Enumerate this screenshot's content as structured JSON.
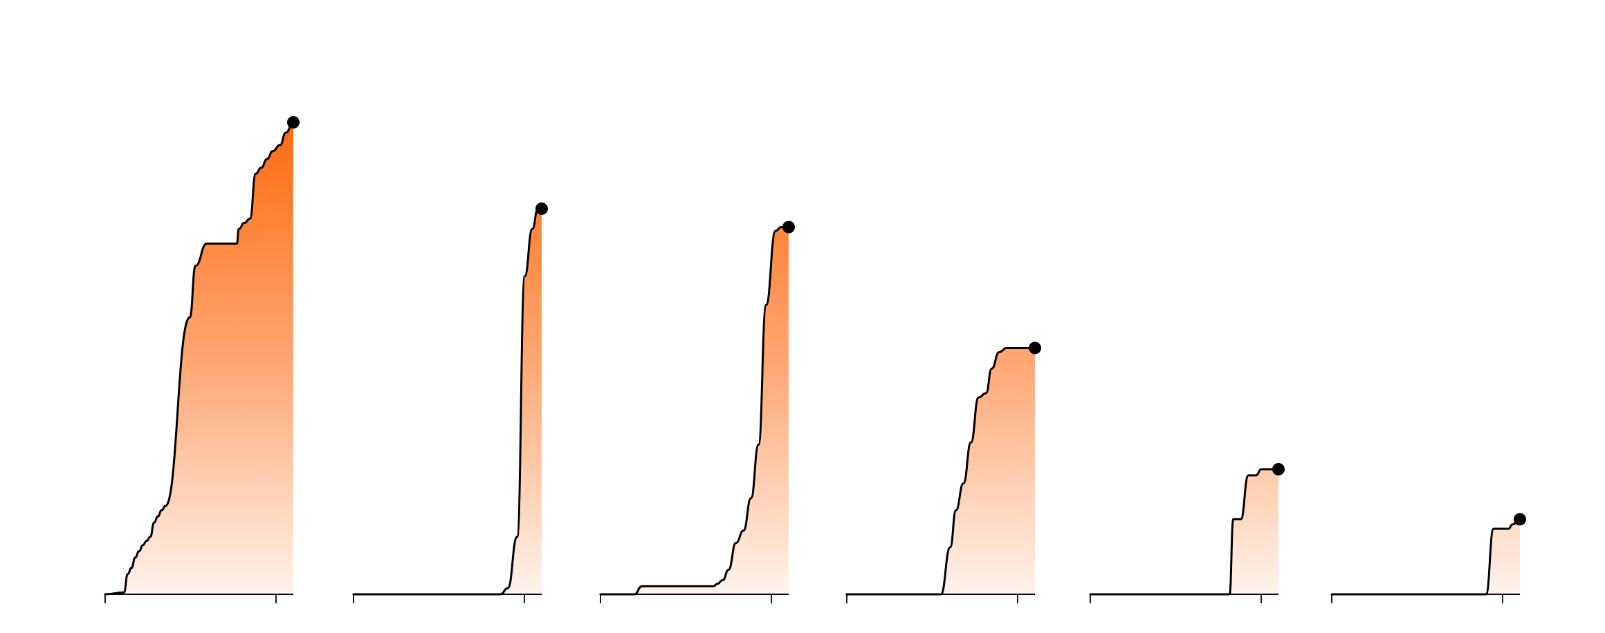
{
  "chart_data": {
    "type": "area",
    "title": "",
    "grid": false,
    "legend": "none",
    "fill_color": "#ff6a10",
    "line_color": "#000000",
    "ylim": [
      0,
      100
    ],
    "series": [
      {
        "peak": 100,
        "points": [
          [
            0,
            0
          ],
          [
            0.1,
            0.4
          ],
          [
            0.12,
            4.3
          ],
          [
            0.14,
            5.6
          ],
          [
            0.16,
            7.8
          ],
          [
            0.18,
            9.1
          ],
          [
            0.2,
            10.4
          ],
          [
            0.22,
            11.3
          ],
          [
            0.24,
            12.2
          ],
          [
            0.26,
            15.2
          ],
          [
            0.28,
            16.5
          ],
          [
            0.3,
            17.8
          ],
          [
            0.32,
            18.7
          ],
          [
            0.45,
            58.7
          ],
          [
            0.48,
            69.6
          ],
          [
            0.54,
            74.3
          ],
          [
            0.55,
            74.3
          ],
          [
            0.7,
            74.3
          ],
          [
            0.71,
            77.4
          ],
          [
            0.74,
            78.7
          ],
          [
            0.77,
            79.6
          ],
          [
            0.8,
            89.1
          ],
          [
            0.83,
            90.4
          ],
          [
            0.86,
            92.2
          ],
          [
            0.89,
            93.9
          ],
          [
            0.93,
            95.2
          ],
          [
            0.96,
            97.8
          ],
          [
            1.0,
            100
          ]
        ]
      },
      {
        "peak": 81.7,
        "points": [
          [
            0,
            0
          ],
          [
            0.78,
            0
          ],
          [
            0.82,
            1.3
          ],
          [
            0.87,
            12.2
          ],
          [
            0.91,
            67.4
          ],
          [
            0.95,
            77.4
          ],
          [
            0.98,
            81.7
          ],
          [
            1.0,
            81.7
          ]
        ]
      },
      {
        "peak": 77.8,
        "points": [
          [
            0,
            0
          ],
          [
            0.18,
            0
          ],
          [
            0.22,
            1.7
          ],
          [
            0.25,
            1.7
          ],
          [
            0.6,
            1.7
          ],
          [
            0.62,
            2.2
          ],
          [
            0.65,
            3.0
          ],
          [
            0.68,
            5.2
          ],
          [
            0.72,
            10.9
          ],
          [
            0.76,
            13.5
          ],
          [
            0.8,
            20.4
          ],
          [
            0.84,
            31.7
          ],
          [
            0.88,
            61.3
          ],
          [
            0.93,
            77.0
          ],
          [
            0.96,
            77.8
          ],
          [
            1.0,
            77.8
          ]
        ]
      },
      {
        "peak": 52.2,
        "points": [
          [
            0,
            0
          ],
          [
            0.5,
            0
          ],
          [
            0.55,
            10.0
          ],
          [
            0.58,
            17.8
          ],
          [
            0.62,
            23.5
          ],
          [
            0.66,
            32.2
          ],
          [
            0.7,
            41.7
          ],
          [
            0.74,
            42.6
          ],
          [
            0.77,
            47.8
          ],
          [
            0.81,
            51.3
          ],
          [
            0.85,
            52.2
          ],
          [
            1.0,
            52.2
          ]
        ]
      },
      {
        "peak": 26.5,
        "points": [
          [
            0,
            0
          ],
          [
            0.74,
            0
          ],
          [
            0.76,
            15.9
          ],
          [
            0.8,
            15.9
          ],
          [
            0.84,
            25.2
          ],
          [
            0.88,
            25.2
          ],
          [
            0.91,
            26.5
          ],
          [
            1.0,
            26.5
          ]
        ]
      },
      {
        "peak": 15.9,
        "points": [
          [
            0,
            0
          ],
          [
            0.82,
            0
          ],
          [
            0.86,
            13.9
          ],
          [
            0.9,
            13.9
          ],
          [
            0.94,
            13.9
          ],
          [
            0.96,
            14.8
          ],
          [
            1.0,
            15.9
          ]
        ]
      }
    ]
  }
}
